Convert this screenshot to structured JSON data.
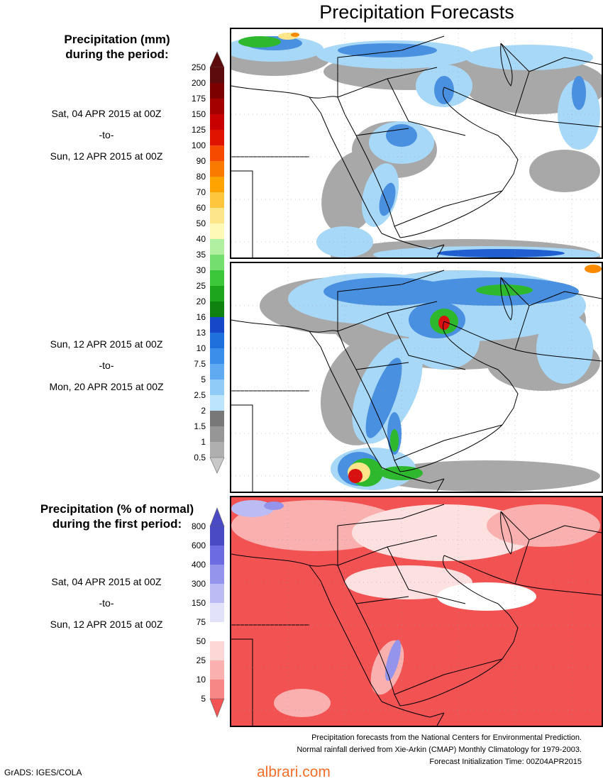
{
  "title": "Precipitation Forecasts",
  "legend_mm": {
    "title_line1": "Precipitation (mm)",
    "title_line2": "during the period:",
    "labels": [
      "250",
      "200",
      "175",
      "150",
      "125",
      "100",
      "90",
      "80",
      "70",
      "60",
      "50",
      "40",
      "35",
      "30",
      "25",
      "20",
      "16",
      "13",
      "10",
      "7.5",
      "5",
      "2.5",
      "2",
      "1.5",
      "1",
      "0.5"
    ],
    "colors": [
      "#5c0c0c",
      "#7d0000",
      "#a50000",
      "#c80000",
      "#e01200",
      "#f54a00",
      "#fa7a00",
      "#fea300",
      "#fdc63c",
      "#fde68a",
      "#fff9b8",
      "#b2f0a1",
      "#74df6e",
      "#3cc63a",
      "#1ea51e",
      "#10820f",
      "#1547c8",
      "#1f6fdc",
      "#3a8fea",
      "#60aaf2",
      "#90cbf8",
      "#bbe5fd",
      "#787878",
      "#969696",
      "#afafaf",
      "#c8c8c8"
    ]
  },
  "legend_pct": {
    "title_line1": "Precipitation (% of normal)",
    "title_line2": "during the first period:",
    "labels": [
      "800",
      "600",
      "400",
      "300",
      "150",
      "75",
      "50",
      "25",
      "10",
      "5"
    ],
    "colors": [
      "#4a4ac4",
      "#6c6ce0",
      "#9494ec",
      "#bcbcf4",
      "#e2e2fb",
      "#ffffff",
      "#fdd6d6",
      "#fbb0b0",
      "#f78686",
      "#f25252"
    ]
  },
  "periods": [
    {
      "start": "Sat, 04 APR 2015 at 00Z",
      "to": "-to-",
      "end": "Sun, 12 APR 2015 at 00Z"
    },
    {
      "start": "Sun, 12 APR 2015 at 00Z",
      "to": "-to-",
      "end": "Mon, 20 APR 2015 at 00Z"
    },
    {
      "start": "Sat, 04 APR 2015 at 00Z",
      "to": "-to-",
      "end": "Sun, 12 APR 2015 at 00Z"
    }
  ],
  "footer": {
    "line1": "Precipitation forecasts from the National Centers for Environmental Prediction.",
    "line2": "Normal rainfall derived from Xie-Arkin (CMAP) Monthly Climatology for 1979-2003.",
    "line3": "Forecast Initialization Time: 00Z04APR2015"
  },
  "credit": "GrADS: IGES/COLA",
  "watermark": "albrari.com",
  "map_colors": {
    "land_fill": "#ffffff",
    "coast": "#000000",
    "dry_gray": "#a8a8a8",
    "light_blue": "#a8d8f8",
    "mid_blue": "#4a90e0",
    "deep_blue": "#1f5fd0",
    "green": "#2eb82e",
    "yellow": "#fde68a",
    "orange": "#fa8a00",
    "red": "#d81010",
    "pct_red": "#f25252",
    "pct_pink": "#fbb0b0",
    "pct_lavender": "#bcbcf4"
  }
}
